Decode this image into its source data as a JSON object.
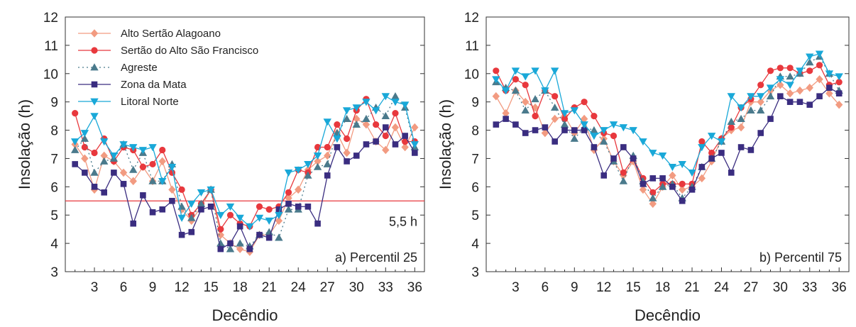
{
  "chart_data": [
    {
      "type": "line",
      "panel_label": "a) Percentil 25",
      "xlabel": "Decêndio",
      "ylabel": "Insolação (h)",
      "xlim": [
        0,
        37
      ],
      "ylim": [
        3,
        12
      ],
      "xticks": [
        "3",
        "6",
        "9",
        "12",
        "15",
        "18",
        "21",
        "24",
        "27",
        "30",
        "33",
        "36"
      ],
      "yticks": [
        "3",
        "4",
        "5",
        "6",
        "7",
        "8",
        "9",
        "10",
        "11",
        "12"
      ],
      "legend_position": "top-left",
      "reference_line": {
        "y": 5.5,
        "label": "5,5 h",
        "color": "#e8383d"
      },
      "x": [
        1,
        2,
        3,
        4,
        5,
        6,
        7,
        8,
        9,
        10,
        11,
        12,
        13,
        14,
        15,
        16,
        17,
        18,
        19,
        20,
        21,
        22,
        23,
        24,
        25,
        26,
        27,
        28,
        29,
        30,
        31,
        32,
        33,
        34,
        35,
        36
      ],
      "series": [
        {
          "name": "Alto Sertão Alagoano",
          "color": "#f29b81",
          "marker": "diamond",
          "dash": "",
          "values": [
            7.5,
            7.0,
            5.9,
            7.1,
            6.9,
            6.5,
            6.2,
            6.7,
            6.2,
            6.9,
            5.9,
            5.2,
            4.8,
            5.3,
            5.9,
            4.3,
            4.0,
            3.8,
            3.7,
            4.3,
            4.3,
            4.8,
            5.6,
            5.9,
            6.6,
            6.9,
            7.1,
            7.9,
            7.2,
            8.4,
            8.2,
            7.6,
            7.3,
            8.1,
            7.4,
            8.1
          ]
        },
        {
          "name": "Sertão do Alto São Francisco",
          "color": "#e8383d",
          "marker": "circle",
          "dash": "",
          "values": [
            8.6,
            7.4,
            7.2,
            7.7,
            6.9,
            7.4,
            7.3,
            6.7,
            6.8,
            7.3,
            6.5,
            5.9,
            5.0,
            5.4,
            5.9,
            4.5,
            5.0,
            4.7,
            4.6,
            5.3,
            5.2,
            5.3,
            5.8,
            6.6,
            6.5,
            7.4,
            7.4,
            8.2,
            7.7,
            8.7,
            9.1,
            8.2,
            7.8,
            8.6,
            7.6,
            7.6
          ]
        },
        {
          "name": "Agreste",
          "color": "#4a7a8c",
          "marker": "triangle-up",
          "dash": "2,4",
          "values": [
            7.3,
            7.7,
            6.5,
            6.9,
            7.0,
            7.5,
            6.6,
            7.2,
            6.2,
            6.2,
            6.8,
            5.3,
            4.9,
            5.4,
            5.9,
            4.0,
            3.8,
            4.0,
            3.9,
            4.3,
            4.4,
            4.2,
            5.2,
            5.2,
            6.4,
            6.7,
            6.8,
            7.9,
            8.4,
            8.2,
            8.4,
            8.8,
            8.5,
            9.2,
            8.8,
            7.4
          ]
        },
        {
          "name": "Zona da Mata",
          "color": "#3a2d80",
          "marker": "square",
          "dash": "",
          "values": [
            6.8,
            6.5,
            6.0,
            5.8,
            6.5,
            6.1,
            4.7,
            5.7,
            5.1,
            5.2,
            5.5,
            4.3,
            4.4,
            5.2,
            5.3,
            3.8,
            4.0,
            4.6,
            3.8,
            4.3,
            4.2,
            5.2,
            5.4,
            5.3,
            5.3,
            4.7,
            6.4,
            7.4,
            6.9,
            7.1,
            7.5,
            7.6,
            8.1,
            7.5,
            7.8,
            7.2
          ]
        },
        {
          "name": "Litoral Norte",
          "color": "#19a8d8",
          "marker": "triangle-down",
          "dash": "",
          "values": [
            7.6,
            7.9,
            8.5,
            7.6,
            7.1,
            7.5,
            7.4,
            7.3,
            7.4,
            6.2,
            6.7,
            4.9,
            5.4,
            5.8,
            5.9,
            5.0,
            5.3,
            4.9,
            4.6,
            4.9,
            4.8,
            5.0,
            6.5,
            6.6,
            6.8,
            7.1,
            8.3,
            7.7,
            8.7,
            8.8,
            9.0,
            8.7,
            9.2,
            9.0,
            8.9,
            7.5
          ]
        }
      ]
    },
    {
      "type": "line",
      "panel_label": "b) Percentil 75",
      "xlabel": "Decêndio",
      "ylabel": "Insolação (h)",
      "xlim": [
        0,
        37
      ],
      "ylim": [
        3,
        12
      ],
      "xticks": [
        "3",
        "6",
        "9",
        "12",
        "15",
        "18",
        "21",
        "24",
        "27",
        "30",
        "33",
        "36"
      ],
      "yticks": [
        "3",
        "4",
        "5",
        "6",
        "7",
        "8",
        "9",
        "10",
        "11",
        "12"
      ],
      "x": [
        1,
        2,
        3,
        4,
        5,
        6,
        7,
        8,
        9,
        10,
        11,
        12,
        13,
        14,
        15,
        16,
        17,
        18,
        19,
        20,
        21,
        22,
        23,
        24,
        25,
        26,
        27,
        28,
        29,
        30,
        31,
        32,
        33,
        34,
        35,
        36
      ],
      "series": [
        {
          "name": "Alto Sertão Alagoano",
          "color": "#f29b81",
          "marker": "diamond",
          "dash": "",
          "values": [
            9.2,
            8.6,
            9.4,
            9.0,
            8.8,
            7.9,
            8.4,
            8.5,
            7.9,
            8.4,
            7.3,
            7.7,
            6.9,
            6.4,
            6.9,
            5.9,
            5.4,
            6.0,
            6.4,
            5.9,
            6.0,
            6.3,
            6.9,
            7.7,
            8.0,
            8.1,
            9.0,
            9.0,
            9.4,
            9.6,
            9.3,
            9.4,
            9.5,
            9.8,
            9.3,
            8.9
          ]
        },
        {
          "name": "Sertão do Alto São Francisco",
          "color": "#e8383d",
          "marker": "circle",
          "dash": "",
          "values": [
            10.1,
            9.4,
            9.8,
            9.6,
            8.5,
            9.4,
            9.2,
            8.4,
            8.8,
            9.0,
            8.5,
            7.9,
            7.8,
            6.5,
            7.0,
            6.3,
            5.8,
            6.1,
            6.1,
            6.1,
            6.1,
            7.6,
            7.2,
            7.7,
            8.1,
            8.8,
            9.1,
            9.6,
            10.1,
            10.2,
            10.2,
            10.0,
            10.1,
            10.3,
            9.6,
            9.7
          ]
        },
        {
          "name": "Agreste",
          "color": "#4a7a8c",
          "marker": "triangle-up",
          "dash": "2,4",
          "values": [
            9.7,
            9.5,
            9.4,
            8.7,
            9.1,
            9.4,
            8.8,
            8.2,
            7.7,
            8.1,
            8.0,
            7.6,
            6.9,
            6.2,
            7.1,
            6.2,
            5.6,
            6.0,
            6.1,
            5.6,
            6.0,
            6.7,
            7.0,
            7.6,
            8.3,
            8.4,
            8.7,
            8.7,
            9.2,
            9.9,
            9.9,
            10.0,
            10.4,
            10.6,
            10.0,
            9.4
          ]
        },
        {
          "name": "Zona da Mata",
          "color": "#3a2d80",
          "marker": "square",
          "dash": "",
          "values": [
            8.2,
            8.4,
            8.2,
            7.9,
            8.0,
            8.1,
            7.6,
            8.0,
            8.0,
            8.0,
            7.4,
            6.4,
            7.0,
            7.4,
            7.0,
            6.1,
            6.3,
            6.3,
            6.0,
            5.5,
            5.9,
            6.7,
            7.0,
            7.2,
            6.5,
            7.4,
            7.3,
            7.9,
            8.4,
            9.2,
            9.0,
            9.0,
            8.9,
            9.2,
            9.5,
            9.3
          ]
        },
        {
          "name": "Litoral Norte",
          "color": "#19a8d8",
          "marker": "triangle-down",
          "dash": "",
          "values": [
            9.8,
            9.4,
            10.1,
            9.9,
            10.1,
            9.4,
            10.1,
            8.6,
            8.7,
            8.2,
            7.8,
            8.0,
            8.2,
            8.1,
            8.0,
            7.6,
            7.2,
            7.1,
            6.7,
            6.8,
            6.5,
            7.4,
            7.8,
            7.6,
            9.2,
            8.8,
            9.2,
            9.2,
            9.5,
            9.8,
            9.6,
            10.1,
            10.6,
            10.7,
            10.0,
            9.9
          ]
        }
      ]
    }
  ]
}
